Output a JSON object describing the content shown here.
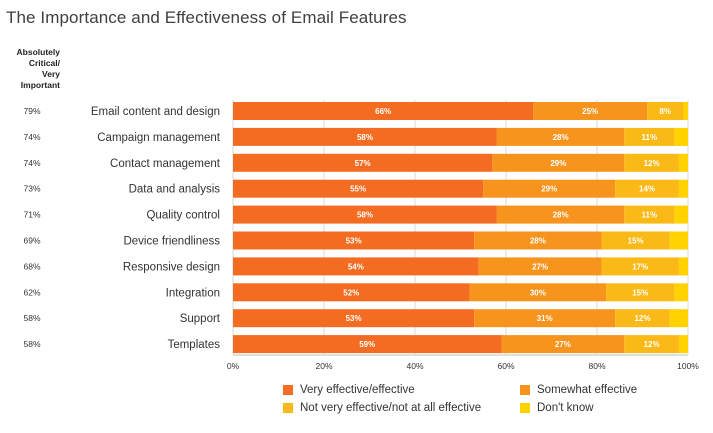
{
  "chart_data": {
    "type": "bar",
    "orientation": "horizontal",
    "stacked": true,
    "title": "The Importance and Effectiveness of Email Features",
    "side_column_header": "Absolutely Critical/ Very Important",
    "side_column_header_lines": [
      "Absolutely",
      "Critical/",
      "Very",
      "Important"
    ],
    "categories": [
      "Email content and design",
      "Campaign management",
      "Contact management",
      "Data and analysis",
      "Quality control",
      "Device friendliness",
      "Responsive design",
      "Integration",
      "Support",
      "Templates"
    ],
    "critical_important": [
      "79%",
      "74%",
      "74%",
      "73%",
      "71%",
      "69%",
      "68%",
      "62%",
      "58%",
      "58%"
    ],
    "series": [
      {
        "name": "Very effective/effective",
        "color": "#f36c21",
        "values": [
          66,
          58,
          57,
          55,
          58,
          53,
          54,
          52,
          53,
          59
        ]
      },
      {
        "name": "Somewhat effective",
        "color": "#f7941d",
        "values": [
          25,
          28,
          29,
          29,
          28,
          28,
          27,
          30,
          31,
          27
        ]
      },
      {
        "name": "Not very effective/not at all effective",
        "color": "#fbb917",
        "values": [
          8,
          11,
          12,
          14,
          11,
          15,
          17,
          15,
          12,
          12
        ]
      },
      {
        "name": "Don't know",
        "color": "#ffd200",
        "values": [
          1,
          3,
          3,
          2,
          3,
          4,
          2,
          3,
          4,
          2
        ]
      }
    ],
    "value_labels": [
      [
        "66%",
        "25%",
        "8%",
        ""
      ],
      [
        "58%",
        "28%",
        "11%",
        ""
      ],
      [
        "57%",
        "29%",
        "12%",
        ""
      ],
      [
        "55%",
        "29%",
        "14%",
        ""
      ],
      [
        "58%",
        "28%",
        "11%",
        ""
      ],
      [
        "53%",
        "28%",
        "15%",
        ""
      ],
      [
        "54%",
        "27%",
        "17%",
        ""
      ],
      [
        "52%",
        "30%",
        "15%",
        ""
      ],
      [
        "53%",
        "31%",
        "12%",
        ""
      ],
      [
        "59%",
        "27%",
        "12%",
        ""
      ]
    ],
    "xlim": [
      0,
      100
    ],
    "xticks": [
      "0%",
      "20%",
      "40%",
      "60%",
      "80%",
      "100%"
    ],
    "grid": true,
    "legend_position": "bottom"
  }
}
